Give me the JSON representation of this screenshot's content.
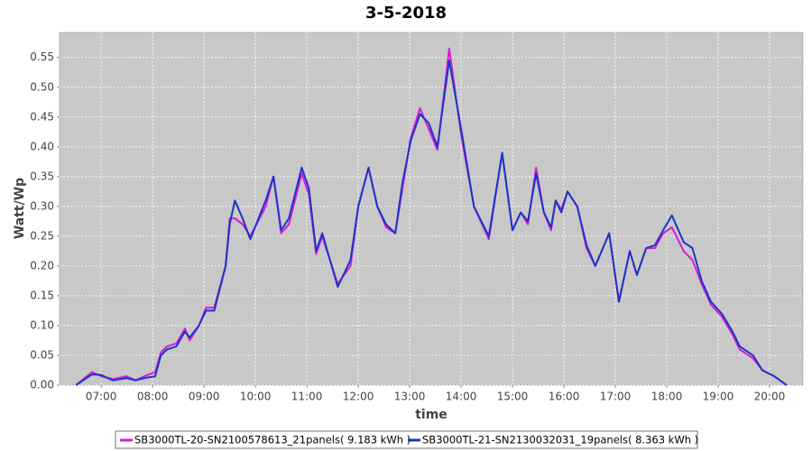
{
  "chart_data": {
    "type": "line",
    "title": "3-5-2018",
    "xlabel": "time",
    "ylabel": "Watt/Wp",
    "x": [
      6.51,
      6.82,
      7.0,
      7.23,
      7.49,
      7.67,
      7.84,
      8.05,
      8.16,
      8.28,
      8.46,
      8.63,
      8.72,
      8.9,
      9.04,
      9.2,
      9.42,
      9.5,
      9.6,
      9.75,
      9.9,
      10.2,
      10.35,
      10.5,
      10.65,
      10.9,
      11.04,
      11.18,
      11.3,
      11.6,
      11.85,
      12.0,
      12.2,
      12.37,
      12.54,
      12.72,
      12.86,
      13.02,
      13.2,
      13.37,
      13.54,
      13.77,
      14.0,
      14.25,
      14.54,
      14.8,
      15.0,
      15.16,
      15.3,
      15.46,
      15.61,
      15.75,
      15.84,
      15.95,
      16.07,
      16.26,
      16.44,
      16.61,
      16.88,
      17.07,
      17.28,
      17.42,
      17.6,
      17.77,
      17.93,
      18.1,
      18.33,
      18.5,
      18.68,
      18.86,
      19.07,
      19.28,
      19.42,
      19.68,
      19.86,
      20.09,
      20.33
    ],
    "series": [
      {
        "name": "SB3000TL-20-SN2100578613_21panels( 9.183 kWh )",
        "color": "#d41cd4",
        "values": [
          0,
          0.022,
          0.015,
          0.01,
          0.015,
          0.008,
          0.015,
          0.022,
          0.055,
          0.065,
          0.07,
          0.095,
          0.075,
          0.1,
          0.13,
          0.13,
          0.2,
          0.28,
          0.28,
          0.27,
          0.25,
          0.3,
          0.35,
          0.255,
          0.27,
          0.355,
          0.32,
          0.22,
          0.25,
          0.17,
          0.2,
          0.3,
          0.365,
          0.3,
          0.265,
          0.255,
          0.33,
          0.415,
          0.465,
          0.43,
          0.395,
          0.565,
          0.42,
          0.3,
          0.245,
          0.39,
          0.26,
          0.29,
          0.27,
          0.365,
          0.29,
          0.26,
          0.31,
          0.295,
          0.325,
          0.3,
          0.23,
          0.2,
          0.255,
          0.14,
          0.225,
          0.185,
          0.23,
          0.23,
          0.255,
          0.265,
          0.225,
          0.21,
          0.17,
          0.135,
          0.115,
          0.085,
          0.06,
          0.045,
          0.025,
          0.015,
          0
        ]
      },
      {
        "name": "SB3000TL-21-SN2130032031_19panels( 8.363 kWh )",
        "color": "#1a35c8",
        "values": [
          0,
          0.018,
          0.017,
          0.008,
          0.012,
          0.008,
          0.012,
          0.015,
          0.05,
          0.06,
          0.065,
          0.09,
          0.08,
          0.1,
          0.125,
          0.125,
          0.2,
          0.27,
          0.31,
          0.28,
          0.245,
          0.31,
          0.35,
          0.26,
          0.28,
          0.365,
          0.33,
          0.225,
          0.255,
          0.165,
          0.21,
          0.3,
          0.365,
          0.3,
          0.27,
          0.255,
          0.34,
          0.41,
          0.455,
          0.44,
          0.4,
          0.545,
          0.43,
          0.3,
          0.25,
          0.39,
          0.26,
          0.29,
          0.275,
          0.355,
          0.29,
          0.265,
          0.31,
          0.29,
          0.325,
          0.3,
          0.235,
          0.2,
          0.255,
          0.14,
          0.225,
          0.185,
          0.23,
          0.235,
          0.26,
          0.285,
          0.24,
          0.23,
          0.175,
          0.14,
          0.12,
          0.09,
          0.065,
          0.05,
          0.025,
          0.015,
          0
        ]
      }
    ],
    "xlim": [
      6.19,
      20.65
    ],
    "ylim": [
      0,
      0.592
    ],
    "xticks": [
      {
        "value": 7,
        "label": "07:00"
      },
      {
        "value": 8,
        "label": "08:00"
      },
      {
        "value": 9,
        "label": "09:00"
      },
      {
        "value": 10,
        "label": "10:00"
      },
      {
        "value": 11,
        "label": "11:00"
      },
      {
        "value": 12,
        "label": "12:00"
      },
      {
        "value": 13,
        "label": "13:00"
      },
      {
        "value": 14,
        "label": "14:00"
      },
      {
        "value": 15,
        "label": "15:00"
      },
      {
        "value": 16,
        "label": "16:00"
      },
      {
        "value": 17,
        "label": "17:00"
      },
      {
        "value": 18,
        "label": "18:00"
      },
      {
        "value": 19,
        "label": "19:00"
      },
      {
        "value": 20,
        "label": "20:00"
      }
    ],
    "yticks": [
      {
        "value": 0,
        "label": "0.00"
      },
      {
        "value": 0.05,
        "label": "0.05"
      },
      {
        "value": 0.1,
        "label": "0.10"
      },
      {
        "value": 0.15,
        "label": "0.15"
      },
      {
        "value": 0.2,
        "label": "0.20"
      },
      {
        "value": 0.25,
        "label": "0.25"
      },
      {
        "value": 0.3,
        "label": "0.30"
      },
      {
        "value": 0.35,
        "label": "0.35"
      },
      {
        "value": 0.4,
        "label": "0.40"
      },
      {
        "value": 0.45,
        "label": "0.45"
      },
      {
        "value": 0.5,
        "label": "0.50"
      },
      {
        "value": 0.55,
        "label": "0.55"
      }
    ],
    "grid": true,
    "legend": "bottom"
  }
}
